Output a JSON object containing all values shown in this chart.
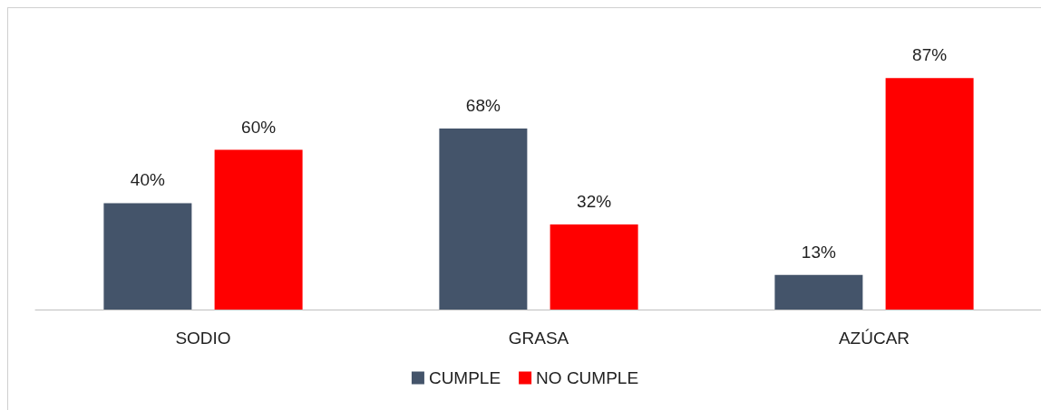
{
  "chart_data": {
    "type": "bar",
    "categories": [
      "SODIO",
      "GRASA",
      "AZÚCAR"
    ],
    "series": [
      {
        "name": "CUMPLE",
        "color": "#44546a",
        "values": [
          40,
          68,
          13
        ],
        "value_labels": [
          "40%",
          "68%",
          "13%"
        ]
      },
      {
        "name": "NO CUMPLE",
        "color": "#ff0000",
        "values": [
          60,
          32,
          87
        ],
        "value_labels": [
          "60%",
          "32%",
          "87%"
        ]
      }
    ],
    "legend": "bottom",
    "tick_labels": "x"
  }
}
